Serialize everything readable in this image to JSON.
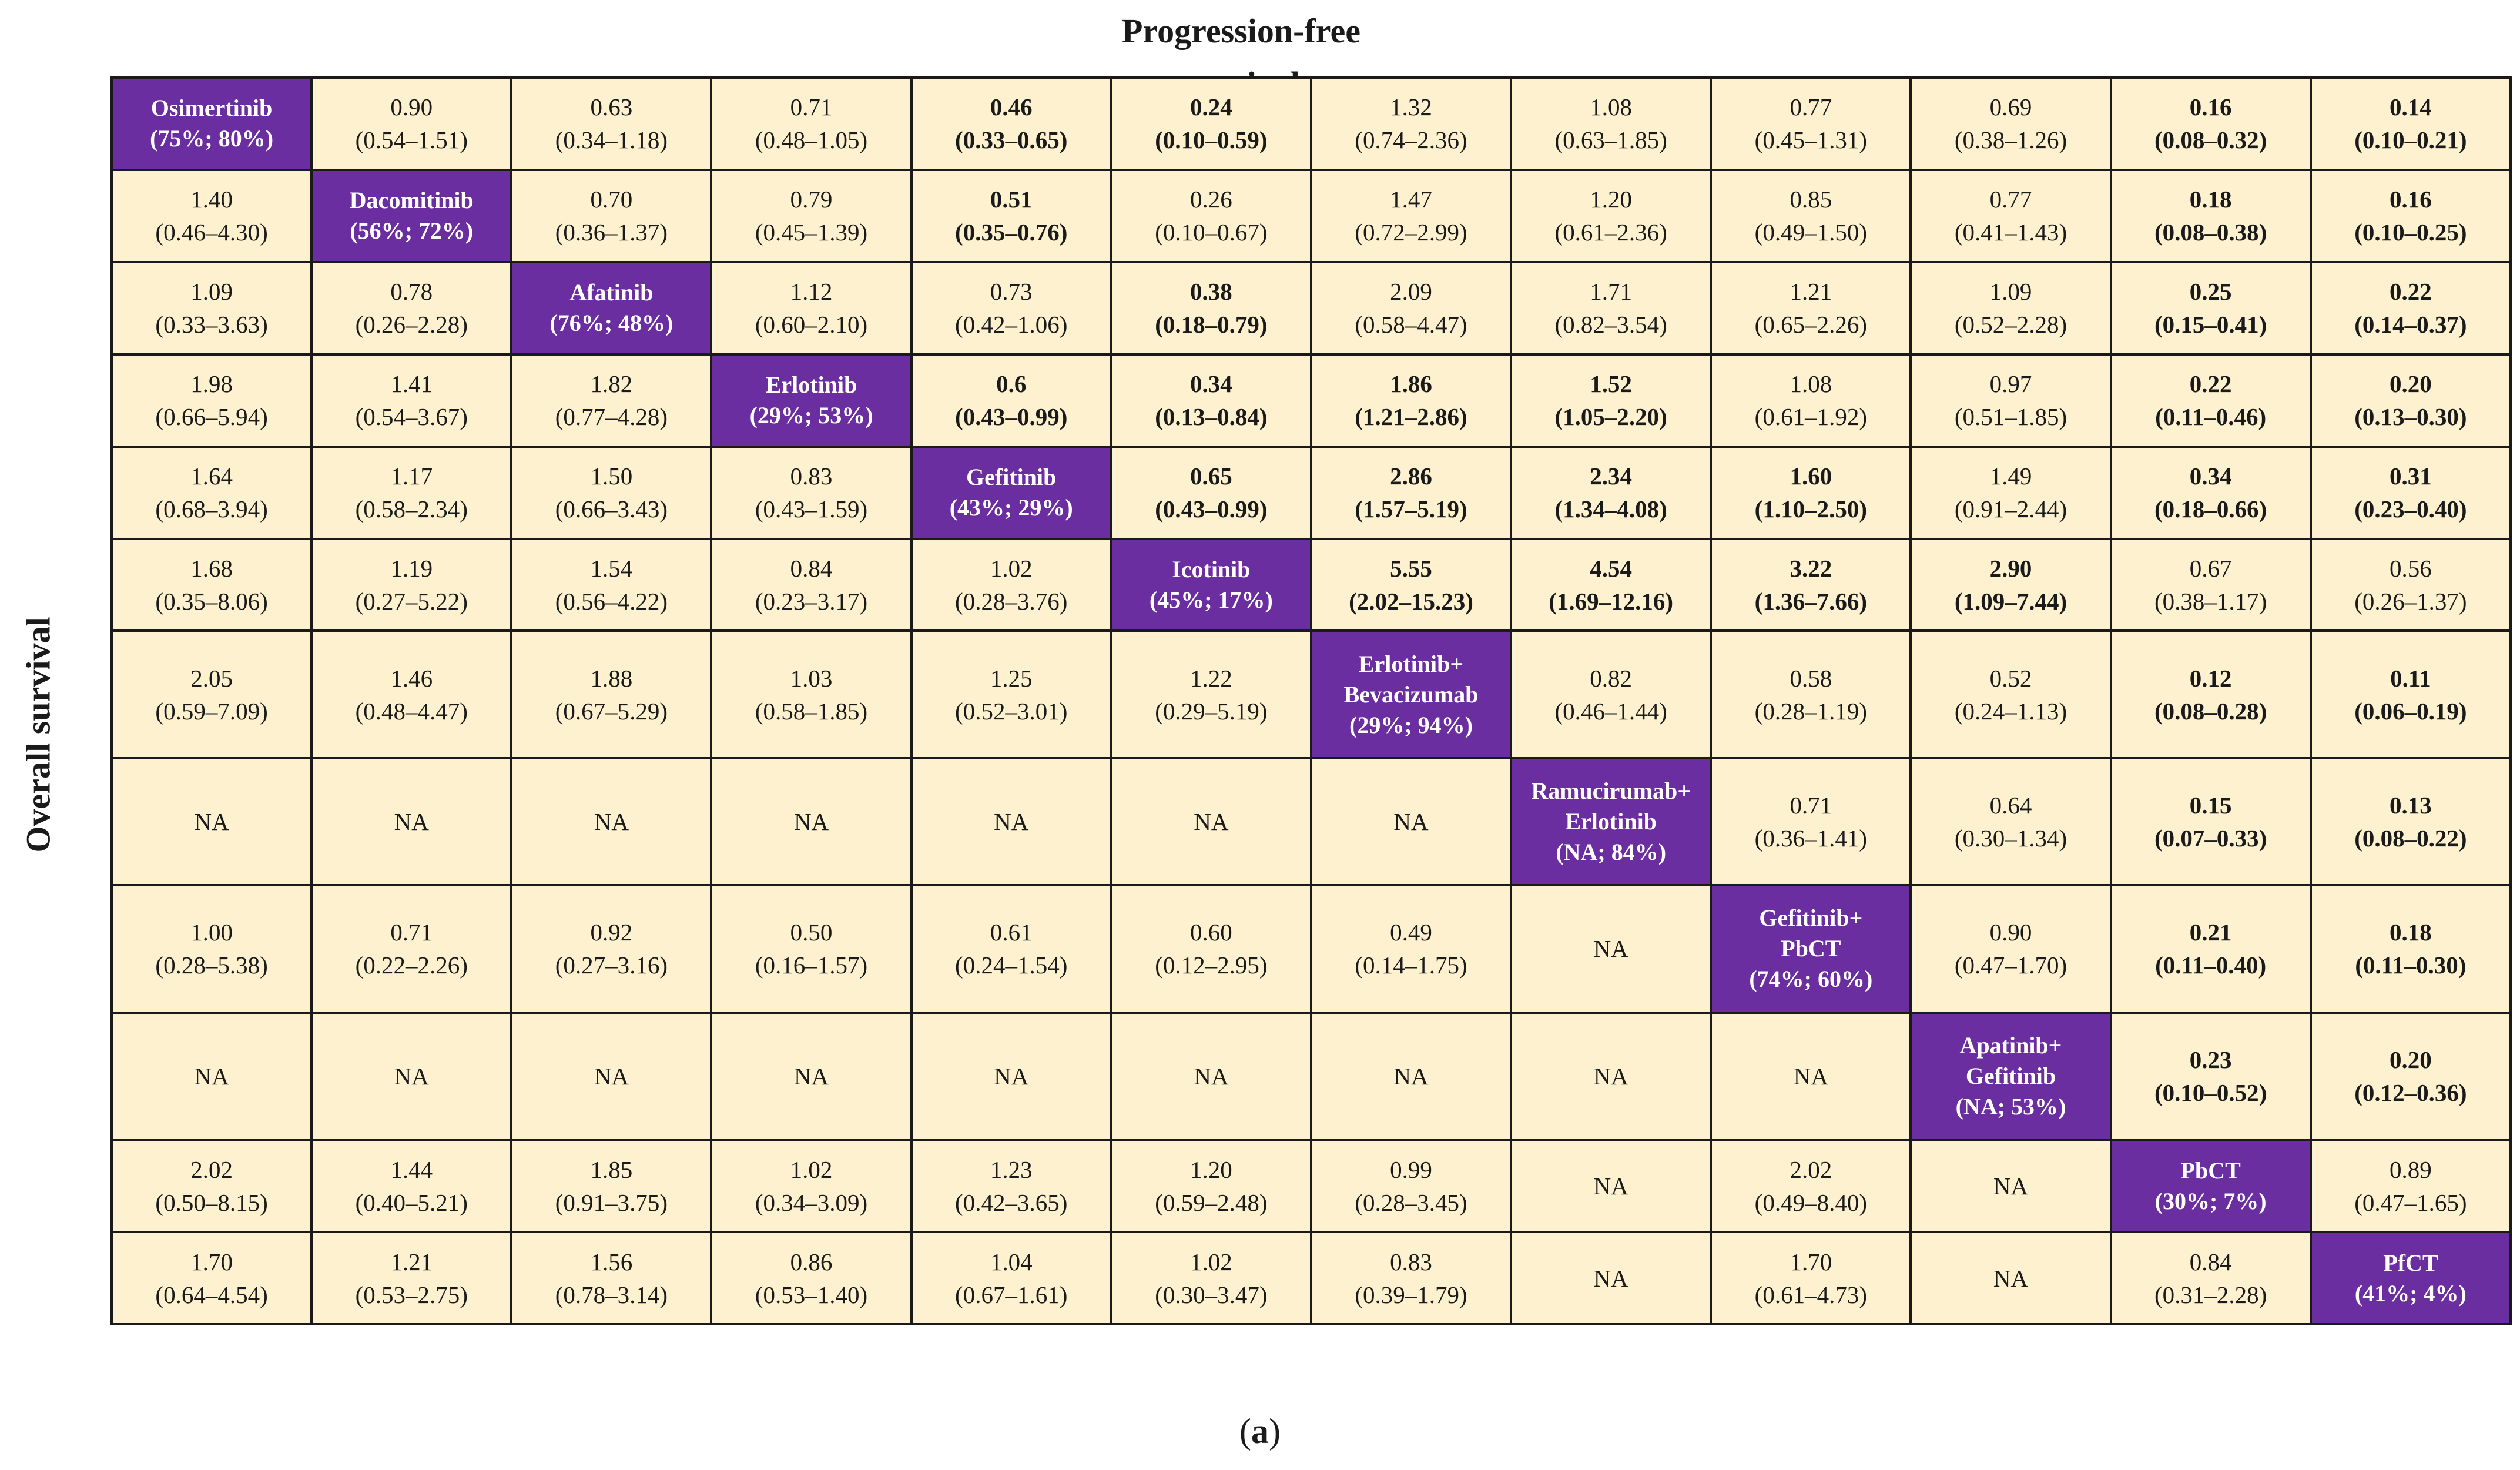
{
  "header": {
    "pfs_label": "Progression-free survival",
    "os_label": "Overall survival"
  },
  "caption": {
    "open": "(",
    "letter": "a",
    "close": ")"
  },
  "colors": {
    "cell_background": "#fef1cf",
    "diagonal_background": "#6a2ea1",
    "diagonal_text": "#ffffff",
    "border": "#1a1a1a"
  },
  "table": {
    "rows": [
      [
        {
          "lines": [
            "Osimertinib",
            "(75%; 80%)"
          ],
          "diag": true
        },
        {
          "lines": [
            "0.90",
            "(0.54–1.51)"
          ],
          "bold": false
        },
        {
          "lines": [
            "0.63",
            "(0.34–1.18)"
          ],
          "bold": false
        },
        {
          "lines": [
            "0.71",
            "(0.48–1.05)"
          ],
          "bold": false
        },
        {
          "lines": [
            "0.46",
            "(0.33–0.65)"
          ],
          "bold": true
        },
        {
          "lines": [
            "0.24",
            "(0.10–0.59)"
          ],
          "bold": true
        },
        {
          "lines": [
            "1.32",
            "(0.74–2.36)"
          ],
          "bold": false
        },
        {
          "lines": [
            "1.08",
            "(0.63–1.85)"
          ],
          "bold": false
        },
        {
          "lines": [
            "0.77",
            "(0.45–1.31)"
          ],
          "bold": false
        },
        {
          "lines": [
            "0.69",
            "(0.38–1.26)"
          ],
          "bold": false
        },
        {
          "lines": [
            "0.16",
            "(0.08–0.32)"
          ],
          "bold": true
        },
        {
          "lines": [
            "0.14",
            "(0.10–0.21)"
          ],
          "bold": true
        }
      ],
      [
        {
          "lines": [
            "1.40",
            "(0.46–4.30)"
          ],
          "bold": false
        },
        {
          "lines": [
            "Dacomitinib",
            "(56%; 72%)"
          ],
          "diag": true
        },
        {
          "lines": [
            "0.70",
            "(0.36–1.37)"
          ],
          "bold": false
        },
        {
          "lines": [
            "0.79",
            "(0.45–1.39)"
          ],
          "bold": false
        },
        {
          "lines": [
            "0.51",
            "(0.35–0.76)"
          ],
          "bold": true
        },
        {
          "lines": [
            "0.26",
            "(0.10–0.67)"
          ],
          "bold": false
        },
        {
          "lines": [
            "1.47",
            "(0.72–2.99)"
          ],
          "bold": false
        },
        {
          "lines": [
            "1.20",
            "(0.61–2.36)"
          ],
          "bold": false
        },
        {
          "lines": [
            "0.85",
            "(0.49–1.50)"
          ],
          "bold": false
        },
        {
          "lines": [
            "0.77",
            "(0.41–1.43)"
          ],
          "bold": false
        },
        {
          "lines": [
            "0.18",
            "(0.08–0.38)"
          ],
          "bold": true
        },
        {
          "lines": [
            "0.16",
            "(0.10–0.25)"
          ],
          "bold": true
        }
      ],
      [
        {
          "lines": [
            "1.09",
            "(0.33–3.63)"
          ],
          "bold": false
        },
        {
          "lines": [
            "0.78",
            "(0.26–2.28)"
          ],
          "bold": false
        },
        {
          "lines": [
            "Afatinib",
            "(76%; 48%)"
          ],
          "diag": true
        },
        {
          "lines": [
            "1.12",
            "(0.60–2.10)"
          ],
          "bold": false
        },
        {
          "lines": [
            "0.73",
            "(0.42–1.06)"
          ],
          "bold": false
        },
        {
          "lines": [
            "0.38",
            "(0.18–0.79)"
          ],
          "bold": true
        },
        {
          "lines": [
            "2.09",
            "(0.58–4.47)"
          ],
          "bold": false
        },
        {
          "lines": [
            "1.71",
            "(0.82–3.54)"
          ],
          "bold": false
        },
        {
          "lines": [
            "1.21",
            "(0.65–2.26)"
          ],
          "bold": false
        },
        {
          "lines": [
            "1.09",
            "(0.52–2.28)"
          ],
          "bold": false
        },
        {
          "lines": [
            "0.25",
            "(0.15–0.41)"
          ],
          "bold": true
        },
        {
          "lines": [
            "0.22",
            "(0.14–0.37)"
          ],
          "bold": true
        }
      ],
      [
        {
          "lines": [
            "1.98",
            "(0.66–5.94)"
          ],
          "bold": false
        },
        {
          "lines": [
            "1.41",
            "(0.54–3.67)"
          ],
          "bold": false
        },
        {
          "lines": [
            "1.82",
            "(0.77–4.28)"
          ],
          "bold": false
        },
        {
          "lines": [
            "Erlotinib",
            "(29%; 53%)"
          ],
          "diag": true
        },
        {
          "lines": [
            "0.6",
            "(0.43–0.99)"
          ],
          "bold": true
        },
        {
          "lines": [
            "0.34",
            "(0.13–0.84)"
          ],
          "bold": true
        },
        {
          "lines": [
            "1.86",
            "(1.21–2.86)"
          ],
          "bold": true
        },
        {
          "lines": [
            "1.52",
            "(1.05–2.20)"
          ],
          "bold": true
        },
        {
          "lines": [
            "1.08",
            "(0.61–1.92)"
          ],
          "bold": false
        },
        {
          "lines": [
            "0.97",
            "(0.51–1.85)"
          ],
          "bold": false
        },
        {
          "lines": [
            "0.22",
            "(0.11–0.46)"
          ],
          "bold": true
        },
        {
          "lines": [
            "0.20",
            "(0.13–0.30)"
          ],
          "bold": true
        }
      ],
      [
        {
          "lines": [
            "1.64",
            "(0.68–3.94)"
          ],
          "bold": false
        },
        {
          "lines": [
            "1.17",
            "(0.58–2.34)"
          ],
          "bold": false
        },
        {
          "lines": [
            "1.50",
            "(0.66–3.43)"
          ],
          "bold": false
        },
        {
          "lines": [
            "0.83",
            "(0.43–1.59)"
          ],
          "bold": false
        },
        {
          "lines": [
            "Gefitinib",
            "(43%; 29%)"
          ],
          "diag": true
        },
        {
          "lines": [
            "0.65",
            "(0.43–0.99)"
          ],
          "bold": true
        },
        {
          "lines": [
            "2.86",
            "(1.57–5.19)"
          ],
          "bold": true
        },
        {
          "lines": [
            "2.34",
            "(1.34–4.08)"
          ],
          "bold": true
        },
        {
          "lines": [
            "1.60",
            "(1.10–2.50)"
          ],
          "bold": true
        },
        {
          "lines": [
            "1.49",
            "(0.91–2.44)"
          ],
          "bold": false
        },
        {
          "lines": [
            "0.34",
            "(0.18–0.66)"
          ],
          "bold": true
        },
        {
          "lines": [
            "0.31",
            "(0.23–0.40)"
          ],
          "bold": true
        }
      ],
      [
        {
          "lines": [
            "1.68",
            "(0.35–8.06)"
          ],
          "bold": false
        },
        {
          "lines": [
            "1.19",
            "(0.27–5.22)"
          ],
          "bold": false
        },
        {
          "lines": [
            "1.54",
            "(0.56–4.22)"
          ],
          "bold": false
        },
        {
          "lines": [
            "0.84",
            "(0.23–3.17)"
          ],
          "bold": false
        },
        {
          "lines": [
            "1.02",
            "(0.28–3.76)"
          ],
          "bold": false
        },
        {
          "lines": [
            "Icotinib",
            "(45%; 17%)"
          ],
          "diag": true
        },
        {
          "lines": [
            "5.55",
            "(2.02–15.23)"
          ],
          "bold": true
        },
        {
          "lines": [
            "4.54",
            "(1.69–12.16)"
          ],
          "bold": true
        },
        {
          "lines": [
            "3.22",
            "(1.36–7.66)"
          ],
          "bold": true
        },
        {
          "lines": [
            "2.90",
            "(1.09–7.44)"
          ],
          "bold": true
        },
        {
          "lines": [
            "0.67",
            "(0.38–1.17)"
          ],
          "bold": false
        },
        {
          "lines": [
            "0.56",
            "(0.26–1.37)"
          ],
          "bold": false
        }
      ],
      [
        {
          "lines": [
            "2.05",
            "(0.59–7.09)"
          ],
          "bold": false
        },
        {
          "lines": [
            "1.46",
            "(0.48–4.47)"
          ],
          "bold": false
        },
        {
          "lines": [
            "1.88",
            "(0.67–5.29)"
          ],
          "bold": false
        },
        {
          "lines": [
            "1.03",
            "(0.58–1.85)"
          ],
          "bold": false
        },
        {
          "lines": [
            "1.25",
            "(0.52–3.01)"
          ],
          "bold": false
        },
        {
          "lines": [
            "1.22",
            "(0.29–5.19)"
          ],
          "bold": false
        },
        {
          "lines": [
            "Erlotinib+",
            "Bevacizumab",
            "(29%; 94%)"
          ],
          "diag": true
        },
        {
          "lines": [
            "0.82",
            "(0.46–1.44)"
          ],
          "bold": false
        },
        {
          "lines": [
            "0.58",
            "(0.28–1.19)"
          ],
          "bold": false
        },
        {
          "lines": [
            "0.52",
            "(0.24–1.13)"
          ],
          "bold": false
        },
        {
          "lines": [
            "0.12",
            "(0.08–0.28)"
          ],
          "bold": true
        },
        {
          "lines": [
            "0.11",
            "(0.06–0.19)"
          ],
          "bold": true
        }
      ],
      [
        {
          "lines": [
            "NA"
          ],
          "bold": false
        },
        {
          "lines": [
            "NA"
          ],
          "bold": false
        },
        {
          "lines": [
            "NA"
          ],
          "bold": false
        },
        {
          "lines": [
            "NA"
          ],
          "bold": false
        },
        {
          "lines": [
            "NA"
          ],
          "bold": false
        },
        {
          "lines": [
            "NA"
          ],
          "bold": false
        },
        {
          "lines": [
            "NA"
          ],
          "bold": false
        },
        {
          "lines": [
            "Ramucirumab+",
            "Erlotinib",
            "(NA; 84%)"
          ],
          "diag": true
        },
        {
          "lines": [
            "0.71",
            "(0.36–1.41)"
          ],
          "bold": false
        },
        {
          "lines": [
            "0.64",
            "(0.30–1.34)"
          ],
          "bold": false
        },
        {
          "lines": [
            "0.15",
            "(0.07–0.33)"
          ],
          "bold": true
        },
        {
          "lines": [
            "0.13",
            "(0.08–0.22)"
          ],
          "bold": true
        }
      ],
      [
        {
          "lines": [
            "1.00",
            "(0.28–5.38)"
          ],
          "bold": false
        },
        {
          "lines": [
            "0.71",
            "(0.22–2.26)"
          ],
          "bold": false
        },
        {
          "lines": [
            "0.92",
            "(0.27–3.16)"
          ],
          "bold": false
        },
        {
          "lines": [
            "0.50",
            "(0.16–1.57)"
          ],
          "bold": false
        },
        {
          "lines": [
            "0.61",
            "(0.24–1.54)"
          ],
          "bold": false
        },
        {
          "lines": [
            "0.60",
            "(0.12–2.95)"
          ],
          "bold": false
        },
        {
          "lines": [
            "0.49",
            "(0.14–1.75)"
          ],
          "bold": false
        },
        {
          "lines": [
            "NA"
          ],
          "bold": false
        },
        {
          "lines": [
            "Gefitinib+",
            "PbCT",
            "(74%; 60%)"
          ],
          "diag": true
        },
        {
          "lines": [
            "0.90",
            "(0.47–1.70)"
          ],
          "bold": false
        },
        {
          "lines": [
            "0.21",
            "(0.11–0.40)"
          ],
          "bold": true
        },
        {
          "lines": [
            "0.18",
            "(0.11–0.30)"
          ],
          "bold": true
        }
      ],
      [
        {
          "lines": [
            "NA"
          ],
          "bold": false
        },
        {
          "lines": [
            "NA"
          ],
          "bold": false
        },
        {
          "lines": [
            "NA"
          ],
          "bold": false
        },
        {
          "lines": [
            "NA"
          ],
          "bold": false
        },
        {
          "lines": [
            "NA"
          ],
          "bold": false
        },
        {
          "lines": [
            "NA"
          ],
          "bold": false
        },
        {
          "lines": [
            "NA"
          ],
          "bold": false
        },
        {
          "lines": [
            "NA"
          ],
          "bold": false
        },
        {
          "lines": [
            "NA"
          ],
          "bold": false
        },
        {
          "lines": [
            "Apatinib+",
            "Gefitinib",
            "(NA; 53%)"
          ],
          "diag": true
        },
        {
          "lines": [
            "0.23",
            "(0.10–0.52)"
          ],
          "bold": true
        },
        {
          "lines": [
            "0.20",
            "(0.12–0.36)"
          ],
          "bold": true
        }
      ],
      [
        {
          "lines": [
            "2.02",
            "(0.50–8.15)"
          ],
          "bold": false
        },
        {
          "lines": [
            "1.44",
            "(0.40–5.21)"
          ],
          "bold": false
        },
        {
          "lines": [
            "1.85",
            "(0.91–3.75)"
          ],
          "bold": false
        },
        {
          "lines": [
            "1.02",
            "(0.34–3.09)"
          ],
          "bold": false
        },
        {
          "lines": [
            "1.23",
            "(0.42–3.65)"
          ],
          "bold": false
        },
        {
          "lines": [
            "1.20",
            "(0.59–2.48)"
          ],
          "bold": false
        },
        {
          "lines": [
            "0.99",
            "(0.28–3.45)"
          ],
          "bold": false
        },
        {
          "lines": [
            "NA"
          ],
          "bold": false
        },
        {
          "lines": [
            "2.02",
            "(0.49–8.40)"
          ],
          "bold": false
        },
        {
          "lines": [
            "NA"
          ],
          "bold": false
        },
        {
          "lines": [
            "PbCT",
            "(30%; 7%)"
          ],
          "diag": true
        },
        {
          "lines": [
            "0.89",
            "(0.47–1.65)"
          ],
          "bold": false
        }
      ],
      [
        {
          "lines": [
            "1.70",
            "(0.64–4.54)"
          ],
          "bold": false
        },
        {
          "lines": [
            "1.21",
            "(0.53–2.75)"
          ],
          "bold": false
        },
        {
          "lines": [
            "1.56",
            "(0.78–3.14)"
          ],
          "bold": false
        },
        {
          "lines": [
            "0.86",
            "(0.53–1.40)"
          ],
          "bold": false
        },
        {
          "lines": [
            "1.04",
            "(0.67–1.61)"
          ],
          "bold": false
        },
        {
          "lines": [
            "1.02",
            "(0.30–3.47)"
          ],
          "bold": false
        },
        {
          "lines": [
            "0.83",
            "(0.39–1.79)"
          ],
          "bold": false
        },
        {
          "lines": [
            "NA"
          ],
          "bold": false
        },
        {
          "lines": [
            "1.70",
            "(0.61–4.73)"
          ],
          "bold": false
        },
        {
          "lines": [
            "NA"
          ],
          "bold": false
        },
        {
          "lines": [
            "0.84",
            "(0.31–2.28)"
          ],
          "bold": false
        },
        {
          "lines": [
            "PfCT",
            "(41%; 4%)"
          ],
          "diag": true
        }
      ]
    ]
  }
}
